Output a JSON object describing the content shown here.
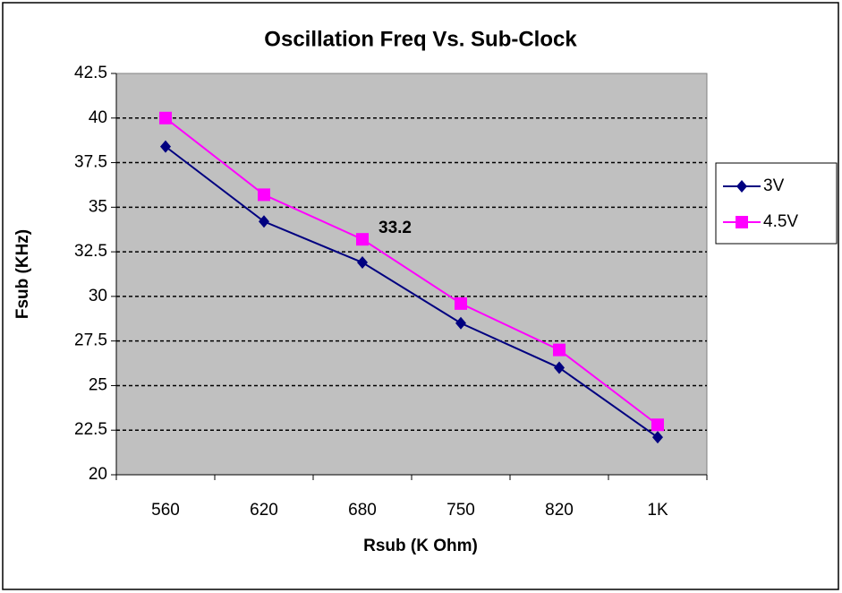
{
  "chart_data": {
    "type": "line",
    "title": "Oscillation Freq Vs. Sub-Clock",
    "x_label": "Rsub (K Ohm)",
    "y_label": "Fsub (KHz)",
    "categories": [
      "560",
      "620",
      "680",
      "750",
      "820",
      "1K"
    ],
    "series": [
      {
        "name": "3V",
        "color": "#000080",
        "marker": "diamond",
        "values": [
          38.4,
          34.2,
          31.9,
          28.5,
          26.0,
          22.1
        ]
      },
      {
        "name": "4.5V",
        "color": "#ff00ff",
        "marker": "square",
        "values": [
          40.0,
          35.7,
          33.2,
          29.6,
          27.0,
          22.8
        ]
      }
    ],
    "annotations": [
      {
        "text": "33.2",
        "series": 1,
        "index": 2
      }
    ],
    "ylim": [
      20,
      42.5
    ],
    "yticks": [
      20,
      22.5,
      25,
      27.5,
      30,
      32.5,
      35,
      37.5,
      40,
      42.5
    ],
    "grid": true,
    "legend": "right"
  }
}
